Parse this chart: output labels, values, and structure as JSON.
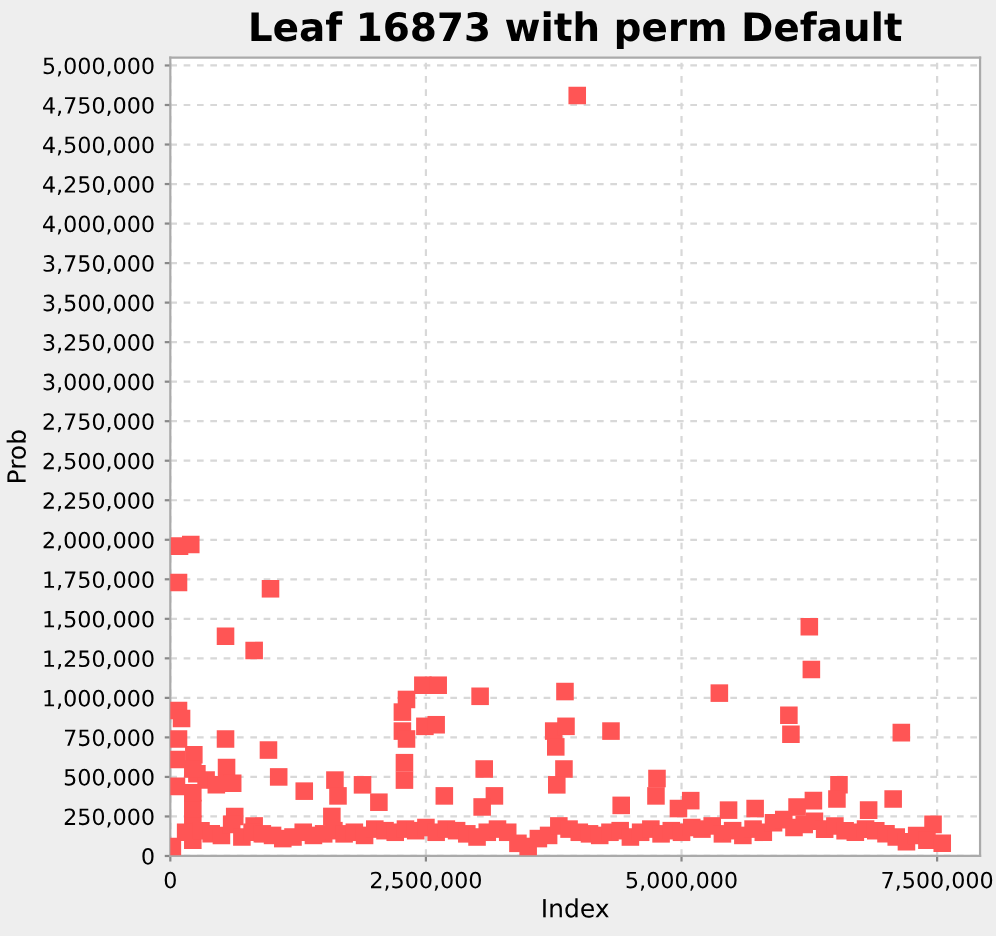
{
  "chart_data": {
    "type": "scatter",
    "title": "Leaf 16873 with perm Default",
    "xlabel": "Index",
    "ylabel": "Prob",
    "xlim": [
      0,
      7920000
    ],
    "ylim": [
      0,
      5050000
    ],
    "xticks": [
      {
        "value": 0,
        "label": "0"
      },
      {
        "value": 2500000,
        "label": "2,500,000"
      },
      {
        "value": 5000000,
        "label": "5,000,000"
      },
      {
        "value": 7500000,
        "label": "7,500,000"
      }
    ],
    "yticks": [
      {
        "value": 0,
        "label": "0"
      },
      {
        "value": 250000,
        "label": "250,000"
      },
      {
        "value": 500000,
        "label": "500,000"
      },
      {
        "value": 750000,
        "label": "750,000"
      },
      {
        "value": 1000000,
        "label": "1,000,000"
      },
      {
        "value": 1250000,
        "label": "1,250,000"
      },
      {
        "value": 1500000,
        "label": "1,500,000"
      },
      {
        "value": 1750000,
        "label": "1,750,000"
      },
      {
        "value": 2000000,
        "label": "2,000,000"
      },
      {
        "value": 2250000,
        "label": "2,250,000"
      },
      {
        "value": 2500000,
        "label": "2,500,000"
      },
      {
        "value": 2750000,
        "label": "2,750,000"
      },
      {
        "value": 3000000,
        "label": "3,000,000"
      },
      {
        "value": 3250000,
        "label": "3,250,000"
      },
      {
        "value": 3500000,
        "label": "3,500,000"
      },
      {
        "value": 3750000,
        "label": "3,750,000"
      },
      {
        "value": 4000000,
        "label": "4,000,000"
      },
      {
        "value": 4250000,
        "label": "4,250,000"
      },
      {
        "value": 4500000,
        "label": "4,500,000"
      },
      {
        "value": 4750000,
        "label": "4,750,000"
      },
      {
        "value": 5000000,
        "label": "5,000,000"
      }
    ],
    "grid": true,
    "marker": "square",
    "legend": false,
    "series": [
      {
        "color": "#ff5555",
        "x": [
          3980000,
          90000,
          200000,
          80000,
          980000,
          540000,
          820000,
          2470000,
          2620000,
          3030000,
          2310000,
          2490000,
          2600000,
          2270000,
          2270000,
          2310000,
          2290000,
          2290000,
          540000,
          960000,
          550000,
          610000,
          1060000,
          1310000,
          1610000,
          1640000,
          1880000,
          2040000,
          1580000,
          3070000,
          3170000,
          2680000,
          3050000,
          630000,
          820000,
          80000,
          110000,
          80000,
          60000,
          230000,
          60000,
          260000,
          350000,
          450000,
          3750000,
          3860000,
          3770000,
          3850000,
          3780000,
          3870000,
          4310000,
          5370000,
          6250000,
          6270000,
          6050000,
          6070000,
          7150000,
          4760000,
          4750000,
          4410000,
          5090000,
          4970000,
          5720000,
          5460000,
          6540000,
          6520000,
          6290000,
          7070000,
          6830000,
          6130000,
          7460000,
          220000,
          220000,
          220000,
          220000,
          220000,
          20000,
          150000,
          300000,
          400000,
          500000,
          600000,
          700000,
          800000,
          900000,
          1000000,
          1100000,
          1200000,
          1300000,
          1400000,
          1500000,
          1600000,
          1700000,
          1800000,
          1900000,
          2000000,
          2100000,
          2200000,
          2300000,
          2400000,
          2500000,
          2600000,
          2700000,
          2800000,
          2900000,
          3000000,
          3100000,
          3200000,
          3300000,
          3400000,
          3500000,
          3600000,
          3700000,
          3800000,
          3900000,
          4000000,
          4100000,
          4200000,
          4300000,
          4400000,
          4500000,
          4600000,
          4700000,
          4800000,
          4900000,
          5000000,
          5100000,
          5200000,
          5300000,
          5400000,
          5500000,
          5600000,
          5700000,
          5800000,
          5900000,
          6000000,
          6100000,
          6200000,
          6300000,
          6400000,
          6500000,
          6600000,
          6700000,
          6800000,
          6900000,
          7000000,
          7100000,
          7200000,
          7300000,
          7400000,
          7550000
        ],
        "values": [
          4810000,
          1960000,
          1970000,
          1730000,
          1690000,
          1390000,
          1300000,
          1080000,
          1080000,
          1010000,
          990000,
          820000,
          830000,
          910000,
          790000,
          740000,
          590000,
          480000,
          740000,
          670000,
          560000,
          460000,
          500000,
          410000,
          480000,
          380000,
          450000,
          340000,
          250000,
          550000,
          380000,
          380000,
          310000,
          250000,
          190000,
          920000,
          870000,
          740000,
          610000,
          640000,
          440000,
          520000,
          480000,
          450000,
          790000,
          1040000,
          690000,
          550000,
          450000,
          820000,
          790000,
          1030000,
          1450000,
          1180000,
          890000,
          770000,
          780000,
          490000,
          380000,
          320000,
          350000,
          300000,
          300000,
          290000,
          450000,
          360000,
          350000,
          360000,
          290000,
          310000,
          200000,
          100000,
          200000,
          300000,
          400000,
          550000,
          60000,
          150000,
          160000,
          140000,
          130000,
          200000,
          120000,
          150000,
          140000,
          130000,
          110000,
          120000,
          150000,
          130000,
          140000,
          160000,
          140000,
          150000,
          130000,
          170000,
          160000,
          150000,
          170000,
          160000,
          180000,
          150000,
          170000,
          160000,
          140000,
          120000,
          150000,
          170000,
          150000,
          80000,
          60000,
          110000,
          130000,
          190000,
          170000,
          150000,
          140000,
          130000,
          150000,
          160000,
          120000,
          150000,
          170000,
          140000,
          160000,
          150000,
          180000,
          170000,
          190000,
          140000,
          160000,
          130000,
          170000,
          150000,
          210000,
          230000,
          180000,
          200000,
          220000,
          170000,
          190000,
          160000,
          150000,
          170000,
          160000,
          140000,
          120000,
          90000,
          130000,
          100000,
          80000
        ]
      }
    ]
  }
}
